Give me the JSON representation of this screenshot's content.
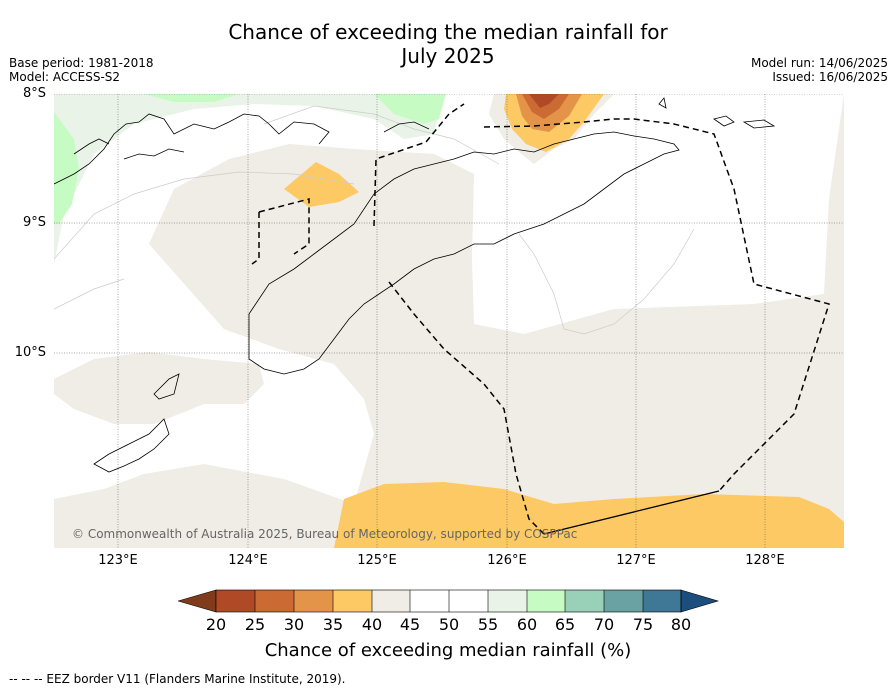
{
  "title_line1": "Chance of exceeding the median rainfall for",
  "title_line2": "July 2025",
  "base_period": "Base period: 1981-2018",
  "model": "Model: ACCESS-S2",
  "model_run": "Model run: 14/06/2025",
  "issued": "Issued: 16/06/2025",
  "lat_labels": [
    "8°S",
    "9°S",
    "10°S"
  ],
  "lon_labels": [
    "123°E",
    "124°E",
    "125°E",
    "126°E",
    "127°E",
    "128°E"
  ],
  "copyright": "© Commonwealth of Australia 2025, Bureau of Meteorology, supported by COSPPac",
  "colorbar": {
    "ticks": [
      "20",
      "25",
      "30",
      "35",
      "40",
      "45",
      "50",
      "55",
      "60",
      "65",
      "70",
      "75",
      "80"
    ],
    "colors": [
      "#7f3b1c",
      "#b04a26",
      "#cc6a33",
      "#e39448",
      "#fdc964",
      "#f0ece6",
      "#ffffff",
      "#ffffff",
      "#e9f3e7",
      "#c6fcc4",
      "#98d1b8",
      "#6aa1a3",
      "#3f7796",
      "#1b4d7d"
    ],
    "title": "Chance of exceeding median rainfall (%)"
  },
  "footer": "--  --  -- EEZ border V11 (Flanders Marine Institute, 2019)."
}
